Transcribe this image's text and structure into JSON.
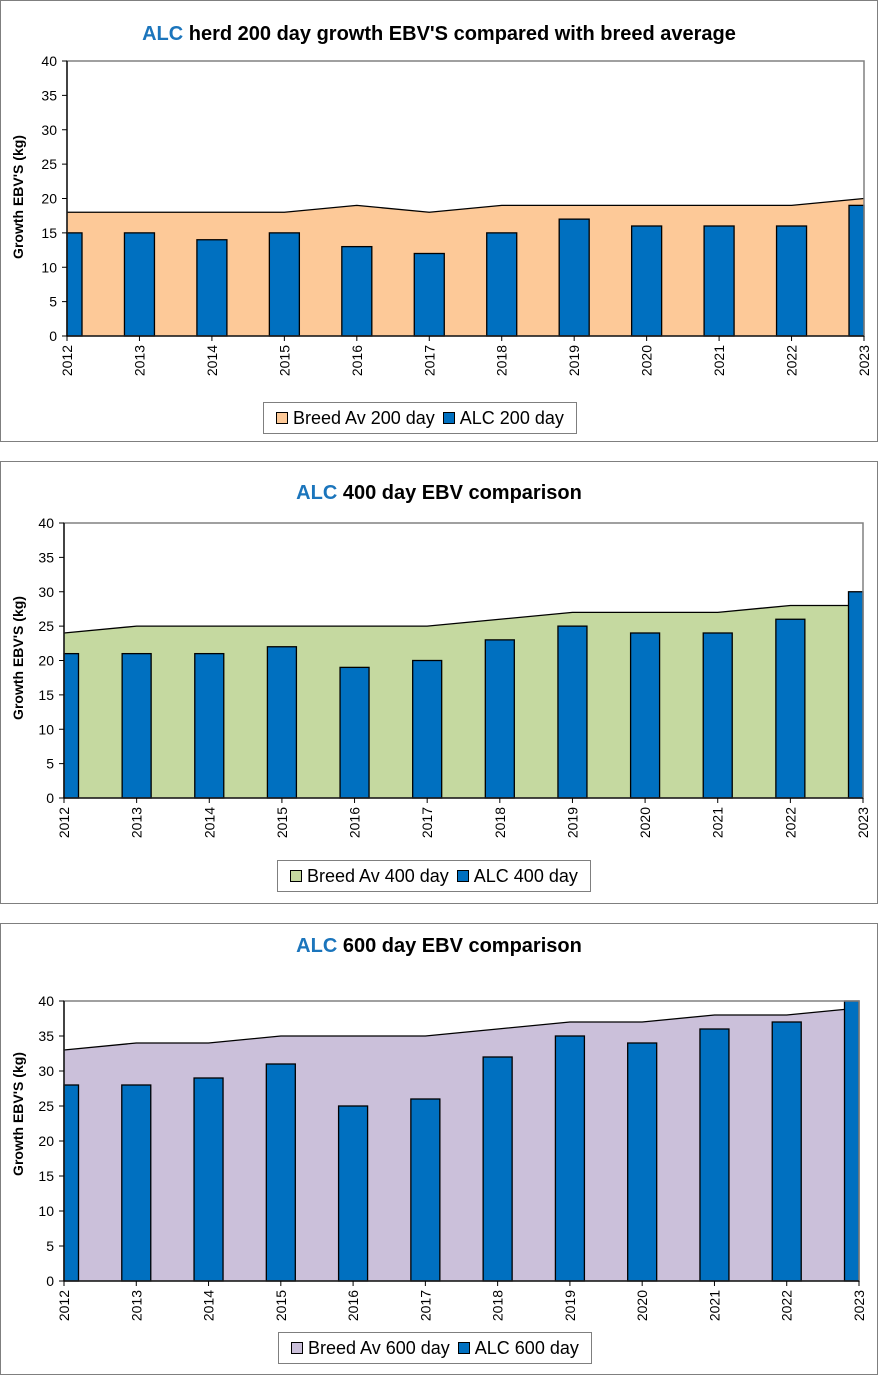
{
  "colors": {
    "bar": "#0070c0",
    "line": "#000000",
    "grid_frame": "#808080",
    "title_brand": "#1b75bc"
  },
  "chart_data": [
    {
      "type": "bar",
      "title_brand": "ALC",
      "title_rest": " herd 200 day growth EBV'S compared with breed average",
      "ylabel": "Growth EBV'S (kg)",
      "ylim": [
        0,
        40
      ],
      "yticks": [
        0,
        5,
        10,
        15,
        20,
        25,
        30,
        35,
        40
      ],
      "categories": [
        "2012",
        "2013",
        "2014",
        "2015",
        "2016",
        "2017",
        "2018",
        "2019",
        "2020",
        "2021",
        "2022",
        "2023"
      ],
      "area_color": "#fdc998",
      "legend_position": "bottom",
      "series": [
        {
          "name": "Breed Av 200 day",
          "kind": "area",
          "values": [
            18,
            18,
            18,
            18,
            19,
            18,
            19,
            19,
            19,
            19,
            19,
            20
          ]
        },
        {
          "name": "ALC 200 day",
          "kind": "bar",
          "values": [
            15,
            15,
            14,
            15,
            13,
            12,
            15,
            17,
            16,
            16,
            16,
            19
          ]
        }
      ]
    },
    {
      "type": "bar",
      "title_brand": "ALC",
      "title_rest": " 400 day EBV comparison",
      "ylabel": "Growth EBV'S (kg)",
      "ylim": [
        0,
        40
      ],
      "yticks": [
        0,
        5,
        10,
        15,
        20,
        25,
        30,
        35,
        40
      ],
      "categories": [
        "2012",
        "2013",
        "2014",
        "2015",
        "2016",
        "2017",
        "2018",
        "2019",
        "2020",
        "2021",
        "2022",
        "2023"
      ],
      "area_color": "#c5d9a0",
      "legend_position": "bottom",
      "series": [
        {
          "name": "Breed Av 400 day",
          "kind": "area",
          "values": [
            24,
            25,
            25,
            25,
            25,
            25,
            26,
            27,
            27,
            27,
            28,
            28
          ]
        },
        {
          "name": "ALC 400 day",
          "kind": "bar",
          "values": [
            21,
            21,
            21,
            22,
            19,
            20,
            23,
            25,
            24,
            24,
            26,
            30
          ]
        }
      ]
    },
    {
      "type": "bar",
      "title_brand": "ALC",
      "title_rest": " 600 day EBV comparison",
      "ylabel": "Growth EBV'S (kg)",
      "ylim": [
        0,
        40
      ],
      "yticks": [
        0,
        5,
        10,
        15,
        20,
        25,
        30,
        35,
        40
      ],
      "categories": [
        "2012",
        "2013",
        "2014",
        "2015",
        "2016",
        "2017",
        "2018",
        "2019",
        "2020",
        "2021",
        "2022",
        "2023"
      ],
      "area_color": "#cbc0da",
      "legend_position": "bottom",
      "series": [
        {
          "name": "Breed Av 600 day",
          "kind": "area",
          "values": [
            33,
            34,
            34,
            35,
            35,
            35,
            36,
            37,
            37,
            38,
            38,
            39
          ]
        },
        {
          "name": "ALC 600 day",
          "kind": "bar",
          "values": [
            28,
            28,
            29,
            31,
            25,
            26,
            32,
            35,
            34,
            36,
            37,
            40
          ]
        }
      ]
    }
  ]
}
